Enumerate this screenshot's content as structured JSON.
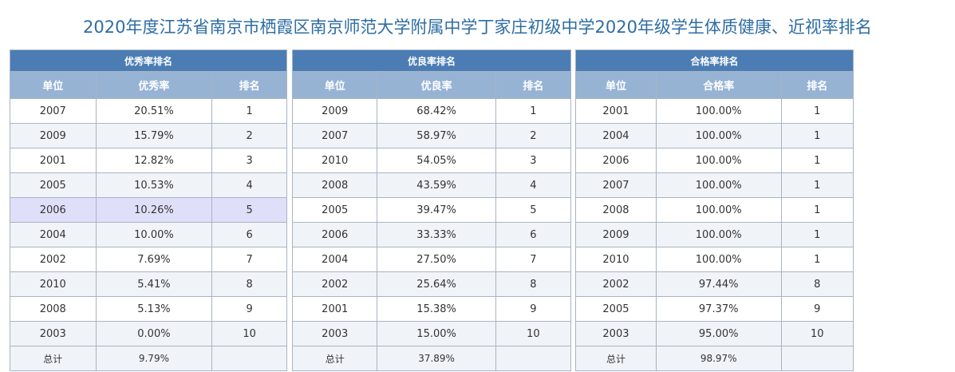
{
  "title": "2020年度江苏省南京市栖霞区南京师范大学附属中学丁家庄初级中学2020年级学生体质健康、近视率排名",
  "tables": [
    {
      "title": "优秀率排名",
      "headers": [
        "单位",
        "优秀率",
        "排名"
      ],
      "rows": [
        [
          "2007",
          "20.51%",
          "1"
        ],
        [
          "2009",
          "15.79%",
          "2"
        ],
        [
          "2001",
          "12.82%",
          "3"
        ],
        [
          "2005",
          "10.53%",
          "4"
        ],
        [
          "2006",
          "10.26%",
          "5"
        ],
        [
          "2004",
          "10.00%",
          "6"
        ],
        [
          "2002",
          "7.69%",
          "7"
        ],
        [
          "2010",
          "5.41%",
          "8"
        ],
        [
          "2008",
          "5.13%",
          "9"
        ],
        [
          "2003",
          "0.00%",
          "10"
        ]
      ],
      "total": [
        "总计",
        "9.79%",
        ""
      ]
    },
    {
      "title": "优良率排名",
      "headers": [
        "单位",
        "优良率",
        "排名"
      ],
      "rows": [
        [
          "2009",
          "68.42%",
          "1"
        ],
        [
          "2007",
          "58.97%",
          "2"
        ],
        [
          "2010",
          "54.05%",
          "3"
        ],
        [
          "2008",
          "43.59%",
          "4"
        ],
        [
          "2005",
          "39.47%",
          "5"
        ],
        [
          "2006",
          "33.33%",
          "6"
        ],
        [
          "2004",
          "27.50%",
          "7"
        ],
        [
          "2002",
          "25.64%",
          "8"
        ],
        [
          "2001",
          "15.38%",
          "9"
        ],
        [
          "2003",
          "15.00%",
          "10"
        ]
      ],
      "total": [
        "总计",
        "37.89%",
        ""
      ]
    },
    {
      "title": "合格率排名",
      "headers": [
        "单位",
        "合格率",
        "排名"
      ],
      "rows": [
        [
          "2001",
          "100.00%",
          "1"
        ],
        [
          "2004",
          "100.00%",
          "1"
        ],
        [
          "2006",
          "100.00%",
          "1"
        ],
        [
          "2007",
          "100.00%",
          "1"
        ],
        [
          "2008",
          "100.00%",
          "1"
        ],
        [
          "2009",
          "100.00%",
          "1"
        ],
        [
          "2010",
          "100.00%",
          "1"
        ],
        [
          "2002",
          "97.44%",
          "8"
        ],
        [
          "2005",
          "97.37%",
          "9"
        ],
        [
          "2003",
          "95.00%",
          "10"
        ]
      ],
      "total": [
        "总计",
        "98.97%",
        ""
      ]
    }
  ]
}
